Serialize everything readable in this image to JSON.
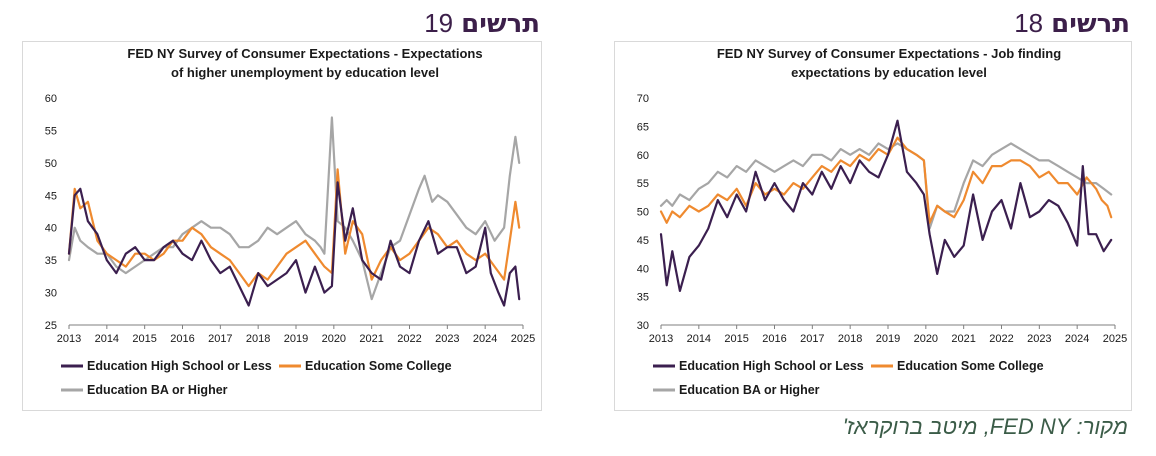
{
  "figures": [
    {
      "label": "תרשים",
      "number": "19"
    },
    {
      "label": "תרשים",
      "number": "18"
    }
  ],
  "source": "מקור: FED NY, מיטב ברוקראז'",
  "colors": {
    "high_school": "#3b1f4f",
    "some_college": "#ef8a2f",
    "ba_higher": "#a6a6a6"
  },
  "chart_data": [
    {
      "type": "line",
      "title": "FED NY Survey of Consumer Expectations - Expectations of higher unemployment by education level",
      "title_lines": [
        "FED NY Survey of Consumer Expectations - Expectations",
        "of higher unemployment by education level"
      ],
      "xlabel": "",
      "ylabel": "",
      "xlim": [
        2013,
        2025
      ],
      "ylim": [
        25,
        60
      ],
      "yticks": [
        25,
        30,
        35,
        40,
        45,
        50,
        55,
        60
      ],
      "xticks": [
        2013,
        2014,
        2015,
        2016,
        2017,
        2018,
        2019,
        2020,
        2021,
        2022,
        2023,
        2024,
        2025
      ],
      "grid": false,
      "legend_position": "bottom",
      "series": [
        {
          "name": "Education High School or Less",
          "color": "#3b1f4f",
          "x": [
            2013.0,
            2013.15,
            2013.3,
            2013.5,
            2013.75,
            2014.0,
            2014.25,
            2014.5,
            2014.75,
            2015.0,
            2015.25,
            2015.5,
            2015.75,
            2016.0,
            2016.25,
            2016.5,
            2016.75,
            2017.0,
            2017.25,
            2017.5,
            2017.75,
            2018.0,
            2018.25,
            2018.5,
            2018.75,
            2019.0,
            2019.25,
            2019.5,
            2019.75,
            2019.95,
            2020.1,
            2020.3,
            2020.5,
            2020.75,
            2021.0,
            2021.25,
            2021.5,
            2021.75,
            2022.0,
            2022.25,
            2022.5,
            2022.75,
            2023.0,
            2023.25,
            2023.5,
            2023.75,
            2024.0,
            2024.15,
            2024.35,
            2024.5,
            2024.65,
            2024.8,
            2024.9
          ],
          "y": [
            36,
            45,
            46,
            41,
            39,
            35,
            33,
            36,
            37,
            35,
            35,
            37,
            38,
            36,
            35,
            38,
            35,
            33,
            34,
            31,
            28,
            33,
            31,
            32,
            33,
            35,
            30,
            34,
            30,
            31,
            47,
            38,
            43,
            35,
            33,
            32,
            38,
            34,
            33,
            38,
            41,
            36,
            37,
            37,
            33,
            34,
            40,
            33,
            30,
            28,
            33,
            34,
            29
          ]
        },
        {
          "name": "Education Some College",
          "color": "#ef8a2f",
          "x": [
            2013.0,
            2013.15,
            2013.3,
            2013.5,
            2013.75,
            2014.0,
            2014.25,
            2014.5,
            2014.75,
            2015.0,
            2015.25,
            2015.5,
            2015.75,
            2016.0,
            2016.25,
            2016.5,
            2016.75,
            2017.0,
            2017.25,
            2017.5,
            2017.75,
            2018.0,
            2018.25,
            2018.5,
            2018.75,
            2019.0,
            2019.25,
            2019.5,
            2019.75,
            2019.95,
            2020.1,
            2020.3,
            2020.5,
            2020.75,
            2021.0,
            2021.25,
            2021.5,
            2021.75,
            2022.0,
            2022.25,
            2022.5,
            2022.75,
            2023.0,
            2023.25,
            2023.5,
            2023.75,
            2024.0,
            2024.25,
            2024.5,
            2024.65,
            2024.8,
            2024.9
          ],
          "y": [
            36,
            46,
            43,
            44,
            38,
            36,
            35,
            34,
            36,
            36,
            35,
            36,
            38,
            38,
            40,
            39,
            37,
            36,
            35,
            33,
            31,
            33,
            32,
            34,
            36,
            37,
            38,
            36,
            34,
            33,
            49,
            36,
            41,
            39,
            32,
            35,
            37,
            35,
            36,
            38,
            40,
            39,
            37,
            38,
            36,
            35,
            36,
            34,
            32,
            38,
            44,
            40
          ]
        },
        {
          "name": "Education BA or Higher",
          "color": "#a6a6a6",
          "x": [
            2013.0,
            2013.15,
            2013.3,
            2013.5,
            2013.75,
            2014.0,
            2014.25,
            2014.5,
            2014.75,
            2015.0,
            2015.25,
            2015.5,
            2015.75,
            2016.0,
            2016.25,
            2016.5,
            2016.75,
            2017.0,
            2017.25,
            2017.5,
            2017.75,
            2018.0,
            2018.25,
            2018.5,
            2018.75,
            2019.0,
            2019.25,
            2019.5,
            2019.65,
            2019.75,
            2019.95,
            2020.1,
            2020.3,
            2020.5,
            2020.75,
            2021.0,
            2021.25,
            2021.5,
            2021.75,
            2022.0,
            2022.25,
            2022.4,
            2022.6,
            2022.75,
            2023.0,
            2023.25,
            2023.5,
            2023.75,
            2024.0,
            2024.25,
            2024.5,
            2024.65,
            2024.8,
            2024.9
          ],
          "y": [
            35,
            40,
            38,
            37,
            36,
            36,
            34,
            33,
            34,
            35,
            36,
            37,
            37,
            39,
            40,
            41,
            40,
            40,
            39,
            37,
            37,
            38,
            40,
            39,
            40,
            41,
            39,
            38,
            37,
            36,
            57,
            41,
            40,
            38,
            35,
            29,
            33,
            37,
            38,
            42,
            46,
            48,
            44,
            45,
            44,
            42,
            40,
            39,
            41,
            38,
            40,
            48,
            54,
            50
          ]
        }
      ]
    },
    {
      "type": "line",
      "title": "FED NY Survey of Consumer Expectations - Job finding expectations by education level",
      "title_lines": [
        "FED NY Survey of Consumer Expectations - Job finding",
        "expectations by education level"
      ],
      "xlabel": "",
      "ylabel": "",
      "xlim": [
        2013,
        2025
      ],
      "ylim": [
        30,
        70
      ],
      "yticks": [
        30,
        35,
        40,
        45,
        50,
        55,
        60,
        65,
        70
      ],
      "xticks": [
        2013,
        2014,
        2015,
        2016,
        2017,
        2018,
        2019,
        2020,
        2021,
        2022,
        2023,
        2024,
        2025
      ],
      "grid": false,
      "legend_position": "bottom",
      "series": [
        {
          "name": "Education High School or Less",
          "color": "#3b1f4f",
          "x": [
            2013.0,
            2013.15,
            2013.3,
            2013.5,
            2013.75,
            2014.0,
            2014.25,
            2014.5,
            2014.75,
            2015.0,
            2015.25,
            2015.5,
            2015.75,
            2016.0,
            2016.25,
            2016.5,
            2016.75,
            2017.0,
            2017.25,
            2017.5,
            2017.75,
            2018.0,
            2018.25,
            2018.5,
            2018.75,
            2019.0,
            2019.25,
            2019.5,
            2019.75,
            2019.95,
            2020.1,
            2020.3,
            2020.5,
            2020.75,
            2021.0,
            2021.25,
            2021.5,
            2021.75,
            2022.0,
            2022.25,
            2022.5,
            2022.75,
            2023.0,
            2023.25,
            2023.5,
            2023.75,
            2024.0,
            2024.15,
            2024.3,
            2024.5,
            2024.7,
            2024.9
          ],
          "y": [
            46,
            37,
            43,
            36,
            42,
            44,
            47,
            52,
            49,
            53,
            50,
            57,
            52,
            55,
            52,
            50,
            55,
            53,
            57,
            54,
            58,
            55,
            59,
            57,
            56,
            60,
            66,
            57,
            55,
            53,
            46,
            39,
            45,
            42,
            44,
            53,
            45,
            50,
            52,
            47,
            55,
            49,
            50,
            52,
            51,
            48,
            44,
            58,
            46,
            46,
            43,
            45
          ]
        },
        {
          "name": "Education Some College",
          "color": "#ef8a2f",
          "x": [
            2013.0,
            2013.15,
            2013.3,
            2013.5,
            2013.75,
            2014.0,
            2014.25,
            2014.5,
            2014.75,
            2015.0,
            2015.25,
            2015.5,
            2015.75,
            2016.0,
            2016.25,
            2016.5,
            2016.75,
            2017.0,
            2017.25,
            2017.5,
            2017.75,
            2018.0,
            2018.25,
            2018.5,
            2018.75,
            2019.0,
            2019.25,
            2019.5,
            2019.75,
            2019.95,
            2020.1,
            2020.3,
            2020.5,
            2020.75,
            2021.0,
            2021.25,
            2021.5,
            2021.75,
            2022.0,
            2022.25,
            2022.5,
            2022.75,
            2023.0,
            2023.25,
            2023.5,
            2023.75,
            2024.0,
            2024.25,
            2024.5,
            2024.65,
            2024.8,
            2024.9
          ],
          "y": [
            50,
            48,
            50,
            49,
            51,
            50,
            51,
            53,
            52,
            54,
            51,
            55,
            53,
            54,
            53,
            55,
            54,
            56,
            58,
            57,
            59,
            58,
            60,
            59,
            61,
            60,
            63,
            61,
            60,
            59,
            48,
            51,
            50,
            49,
            52,
            57,
            55,
            58,
            58,
            59,
            59,
            58,
            56,
            57,
            55,
            55,
            53,
            56,
            54,
            52,
            51,
            49
          ]
        },
        {
          "name": "Education BA or Higher",
          "color": "#a6a6a6",
          "x": [
            2013.0,
            2013.15,
            2013.3,
            2013.5,
            2013.75,
            2014.0,
            2014.25,
            2014.5,
            2014.75,
            2015.0,
            2015.25,
            2015.5,
            2015.75,
            2016.0,
            2016.25,
            2016.5,
            2016.75,
            2017.0,
            2017.25,
            2017.5,
            2017.75,
            2018.0,
            2018.25,
            2018.5,
            2018.75,
            2019.0,
            2019.25,
            2019.5,
            2019.75,
            2019.95,
            2020.1,
            2020.3,
            2020.5,
            2020.75,
            2021.0,
            2021.25,
            2021.5,
            2021.75,
            2022.0,
            2022.25,
            2022.5,
            2022.75,
            2023.0,
            2023.25,
            2023.5,
            2023.75,
            2024.0,
            2024.25,
            2024.5,
            2024.7,
            2024.9
          ],
          "y": [
            51,
            52,
            51,
            53,
            52,
            54,
            55,
            57,
            56,
            58,
            57,
            59,
            58,
            57,
            58,
            59,
            58,
            60,
            60,
            59,
            61,
            60,
            61,
            60,
            62,
            61,
            62,
            61,
            60,
            59,
            47,
            51,
            50,
            50,
            55,
            59,
            58,
            60,
            61,
            62,
            61,
            60,
            59,
            59,
            58,
            57,
            56,
            55,
            55,
            54,
            53
          ]
        }
      ]
    }
  ]
}
